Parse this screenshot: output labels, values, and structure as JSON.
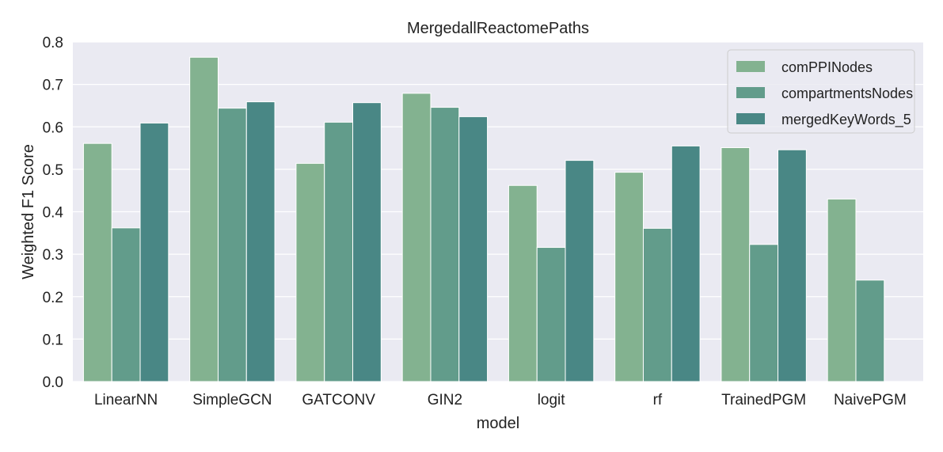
{
  "chart_data": {
    "type": "bar",
    "title": "MergedallReactomePaths",
    "xlabel": "model",
    "ylabel": "Weighted F1 Score",
    "ylim": [
      0,
      0.8
    ],
    "yticks": [
      "0.0",
      "0.1",
      "0.2",
      "0.3",
      "0.4",
      "0.5",
      "0.6",
      "0.7",
      "0.8"
    ],
    "categories": [
      "LinearNN",
      "SimpleGCN",
      "GATCONV",
      "GIN2",
      "logit",
      "rf",
      "TrainedPGM",
      "NaivePGM"
    ],
    "series": [
      {
        "name": "comPPINodes",
        "color": "#83b290",
        "values": [
          0.561,
          0.764,
          0.514,
          0.679,
          0.462,
          0.493,
          0.551,
          0.43
        ]
      },
      {
        "name": "compartmentsNodes",
        "color": "#629c8b",
        "values": [
          0.362,
          0.644,
          0.611,
          0.646,
          0.316,
          0.361,
          0.323,
          0.239
        ]
      },
      {
        "name": "mergedKeyWords_5",
        "color": "#498785",
        "values": [
          0.609,
          0.659,
          0.657,
          0.624,
          0.521,
          0.555,
          0.546,
          null
        ]
      }
    ],
    "grid": true,
    "legend_position": "top-right",
    "background_color": "#eaeaf2"
  }
}
